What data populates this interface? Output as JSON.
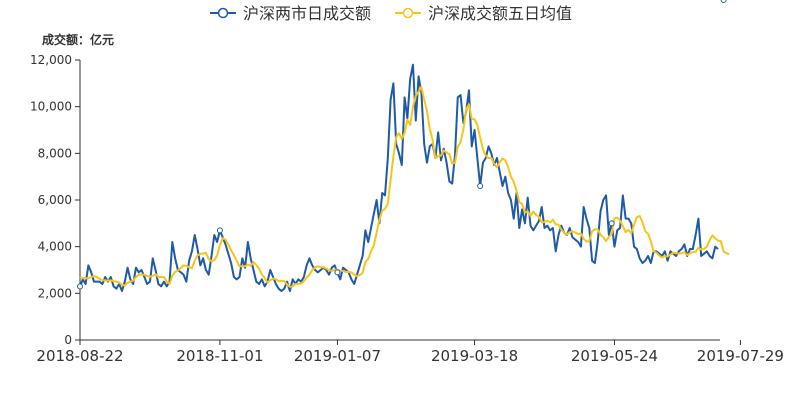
{
  "chart_data": {
    "type": "line",
    "ylabel": "成交额：亿元",
    "ylim": [
      0,
      12000
    ],
    "yticks": [
      0,
      2000,
      4000,
      6000,
      8000,
      10000,
      12000
    ],
    "ytick_labels": [
      "0",
      "2,000",
      "4,000",
      "6,000",
      "8,000",
      "10,000",
      "12,000"
    ],
    "x_tick_labels": [
      "2018-08-22",
      "2018-11-01",
      "2019-01-07",
      "2019-03-18",
      "2019-05-24",
      "2019-07-29"
    ],
    "x_tick_index": [
      0,
      50,
      92,
      141,
      191,
      236
    ],
    "legend_position": "top-center",
    "grid": false,
    "series": [
      {
        "name": "沪深两市日成交额",
        "color": "#1f5aa6",
        "marker": "hollow-circle",
        "values": [
          2300,
          2600,
          2400,
          3200,
          2900,
          2500,
          2500,
          2500,
          2400,
          2700,
          2500,
          2700,
          2300,
          2200,
          2400,
          2100,
          2500,
          3100,
          2600,
          2400,
          3100,
          2900,
          3000,
          2700,
          2400,
          2500,
          3500,
          3000,
          2400,
          2300,
          2500,
          2300,
          2500,
          4200,
          3500,
          3000,
          2900,
          2800,
          2500,
          3400,
          3800,
          4500,
          3900,
          3200,
          3500,
          3000,
          2800,
          3600,
          4500,
          4200,
          4700,
          4400,
          4100,
          3700,
          3300,
          2700,
          2600,
          2700,
          3500,
          3100,
          4200,
          3500,
          3000,
          2500,
          2400,
          2600,
          2300,
          2500,
          3000,
          2700,
          2400,
          2200,
          2100,
          2200,
          2500,
          2100,
          2600,
          2400,
          2600,
          2500,
          2700,
          3200,
          3500,
          3200,
          3000,
          2900,
          3000,
          3100,
          3000,
          2800,
          3100,
          3200,
          2900,
          2600,
          3100,
          3000,
          2900,
          2600,
          2400,
          2800,
          3200,
          3600,
          4700,
          4200,
          4800,
          5400,
          6000,
          5000,
          6300,
          6200,
          7800,
          10300,
          11000,
          8400,
          8000,
          7500,
          10400,
          9500,
          11200,
          11800,
          9400,
          11300,
          10600,
          8400,
          7600,
          8300,
          8400,
          7800,
          8900,
          7700,
          8200,
          7600,
          6800,
          6700,
          7900,
          10400,
          10500,
          9300,
          9800,
          10700,
          8300,
          9000,
          7800,
          6600,
          7600,
          7800,
          8300,
          8000,
          7500,
          7800,
          7200,
          6600,
          7000,
          6300,
          6000,
          5200,
          6300,
          4800,
          5600,
          5000,
          6100,
          4900,
          4700,
          4900,
          5100,
          5700,
          4800,
          4900,
          4700,
          4800,
          3800,
          4500,
          4900,
          4600,
          4500,
          4800,
          4400,
          4300,
          4200,
          4000,
          5700,
          5200,
          4800,
          3400,
          3300,
          4200,
          5500,
          6000,
          6200,
          4500,
          5000,
          4000,
          4700,
          4800,
          6200,
          5200,
          5200,
          5000,
          4000,
          3900,
          3500,
          3300,
          3400,
          3600,
          3300,
          3800,
          3800,
          3700,
          3600,
          3800,
          3400,
          3800,
          3700,
          3600,
          3800,
          3900,
          4100,
          3600,
          3900,
          3900,
          4500,
          5200,
          3600,
          3700,
          3800,
          3600,
          3500,
          4000,
          3900
        ]
      },
      {
        "name": "沪深成交额五日均值",
        "color": "#f5c518",
        "marker": "none",
        "values": [
          2700,
          2650,
          2640,
          2650,
          2700,
          2740,
          2700,
          2620,
          2560,
          2560,
          2540,
          2560,
          2520,
          2500,
          2460,
          2360,
          2340,
          2460,
          2500,
          2540,
          2700,
          2800,
          2800,
          2800,
          2740,
          2720,
          2740,
          2820,
          2700,
          2700,
          2700,
          2500,
          2400,
          2760,
          2920,
          2980,
          3080,
          3200,
          3180,
          3120,
          3080,
          3400,
          3620,
          3700,
          3700,
          3740,
          3460,
          3380,
          3420,
          3620,
          4060,
          4360,
          4300,
          4100,
          3840,
          3640,
          3400,
          3160,
          3160,
          3160,
          3240,
          3180,
          3340,
          3220,
          3060,
          2800,
          2660,
          2460,
          2560,
          2640,
          2600,
          2520,
          2540,
          2520,
          2380,
          2280,
          2300,
          2400,
          2400,
          2420,
          2520,
          2680,
          2800,
          3000,
          3100,
          3160,
          3120,
          3120,
          3060,
          3000,
          2960,
          3000,
          3020,
          2960,
          2960,
          2920,
          2920,
          2900,
          2800,
          2740,
          2780,
          2880,
          3340,
          3480,
          3800,
          4040,
          4600,
          5160,
          5540,
          5620,
          5860,
          6880,
          7860,
          8700,
          8860,
          8620,
          8880,
          9440,
          9220,
          10000,
          10460,
          10640,
          10840,
          10300,
          9820,
          9040,
          8580,
          7800,
          7880,
          7900,
          8120,
          8040,
          7960,
          7560,
          7600,
          8280,
          8480,
          9020,
          9900,
          10100,
          9480,
          9460,
          9220,
          8680,
          8180,
          7900,
          7800,
          7800,
          7560,
          7400,
          7620,
          7780,
          7700,
          7420,
          7000,
          6780,
          6400,
          5920,
          5820,
          5460,
          5520,
          5320,
          5500,
          5360,
          5280,
          5040,
          5060,
          5120,
          5040,
          5160,
          4960,
          4940,
          4740,
          4600,
          4520,
          4620,
          4660,
          4600,
          4540,
          4560,
          4340,
          4220,
          4240,
          4660,
          4740,
          4740,
          4520,
          4400,
          4240,
          4420,
          4540,
          5220,
          5240,
          5120,
          4880,
          4620,
          4720,
          4580,
          4940,
          5260,
          5320,
          5060,
          4660,
          4560,
          4240,
          3800,
          3740,
          3620,
          3540,
          3600,
          3580,
          3660,
          3740,
          3720,
          3700,
          3720,
          3760,
          3640,
          3720,
          3760,
          3780,
          3940,
          3880,
          3900,
          4000,
          4280,
          4480,
          4360,
          4260,
          4240,
          3800,
          3720,
          3680
        ]
      }
    ]
  }
}
